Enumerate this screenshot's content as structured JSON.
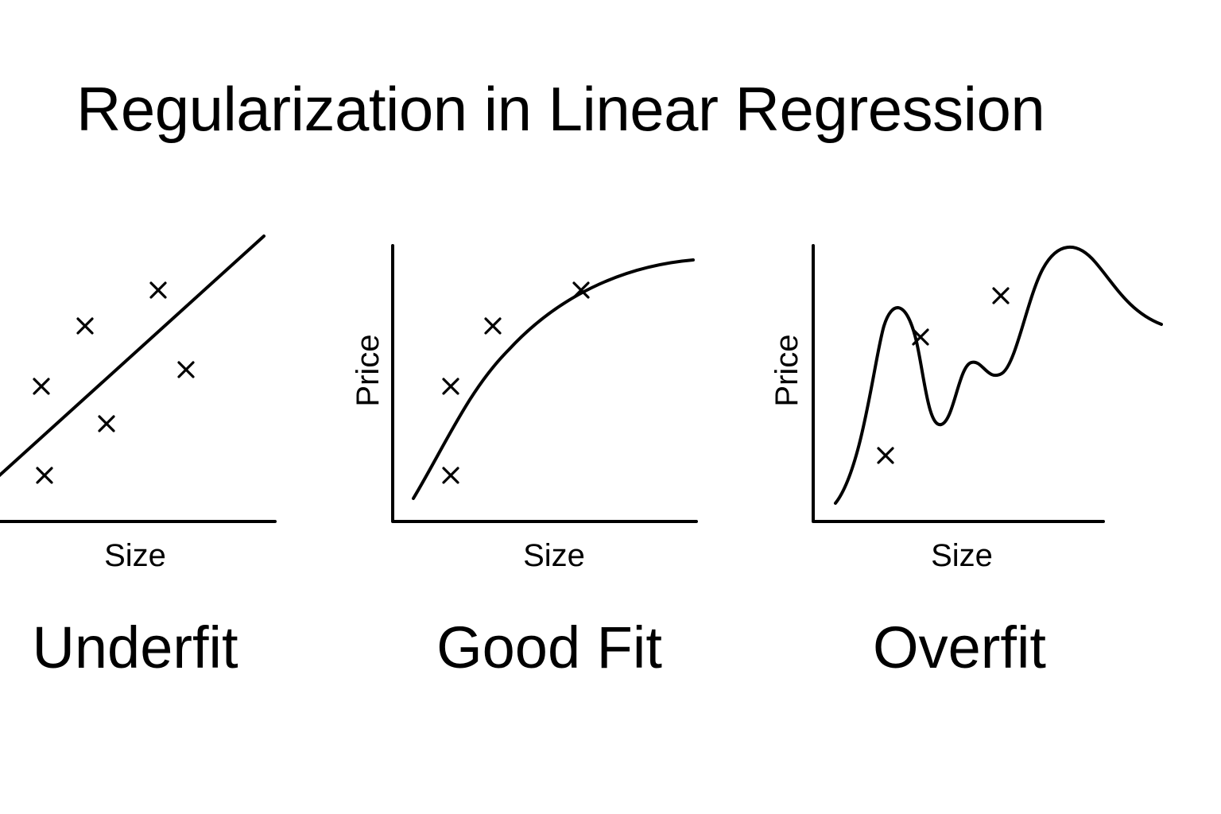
{
  "title": "Regularization in Linear Regression",
  "panels": [
    {
      "caption": "Underfit",
      "xlabel": "Size",
      "ylabel": "",
      "fit": "linear",
      "points": [
        "x-marker",
        "x-marker",
        "x-marker",
        "x-marker",
        "x-marker",
        "x-marker"
      ]
    },
    {
      "caption": "Good Fit",
      "xlabel": "Size",
      "ylabel": "Price",
      "fit": "smooth-curve",
      "points": [
        "x-marker",
        "x-marker",
        "x-marker",
        "x-marker"
      ]
    },
    {
      "caption": "Overfit",
      "xlabel": "Size",
      "ylabel": "Price",
      "fit": "wiggly-curve",
      "points": [
        "x-marker",
        "x-marker",
        "x-marker"
      ]
    }
  ]
}
